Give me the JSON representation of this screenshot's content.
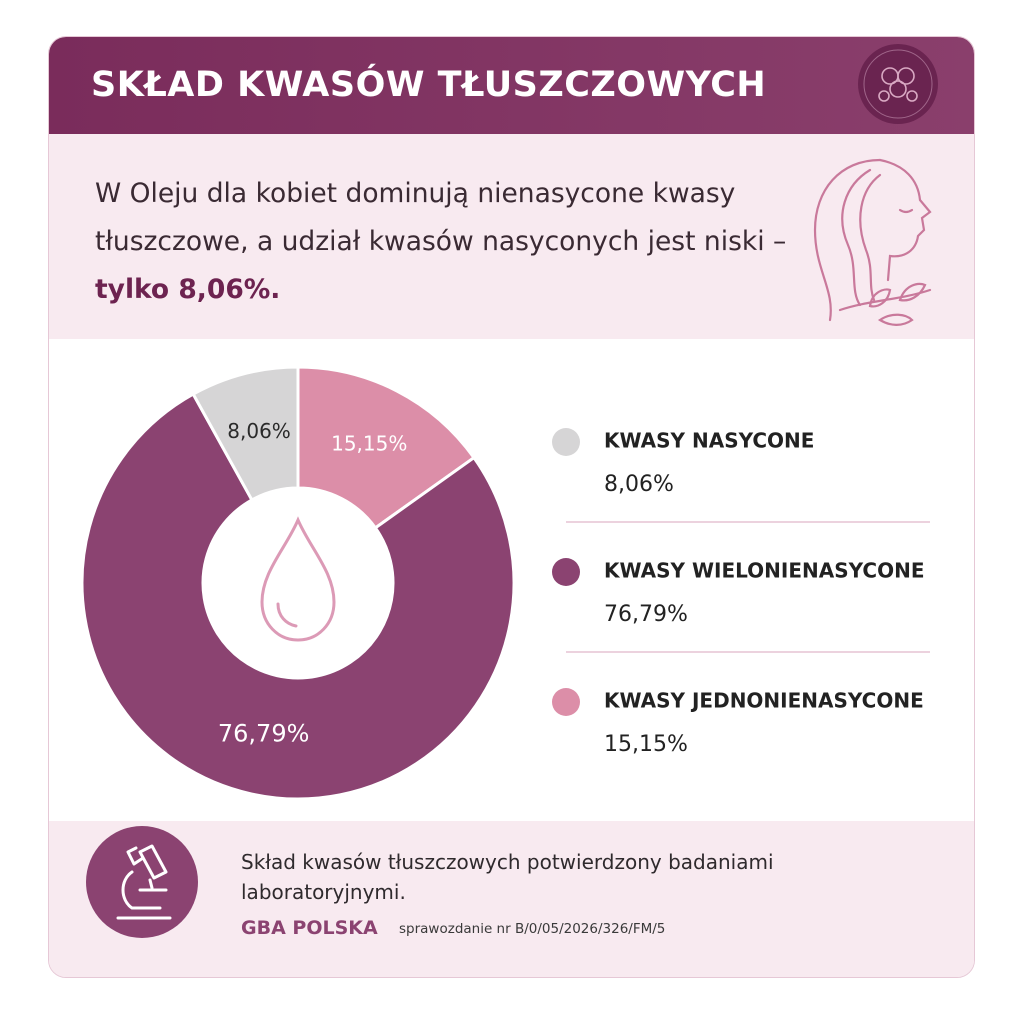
{
  "header": {
    "title": "SKŁAD KWASÓW TŁUSZCZOWYCH"
  },
  "intro": {
    "text": "W Oleju dla kobiet dominują nienasycone kwasy tłuszczowe, a udział kwasów nasyconych jest niski –",
    "highlight": "tylko 8,06%."
  },
  "chart_data": {
    "type": "pie",
    "donut": true,
    "categories": [
      "KWASY NASYCONE",
      "KWASY WIELONIENASYCONE",
      "KWASY JEDNONIENASYCONE"
    ],
    "values": [
      8.06,
      76.79,
      15.15
    ],
    "value_labels": [
      "8,06%",
      "76,79%",
      "15,15%"
    ],
    "colors": [
      "#d6d5d6",
      "#8b4371",
      "#dc8ea8"
    ],
    "label_colors": [
      "#2a2a2a",
      "#ffffff",
      "#ffffff"
    ]
  },
  "footer": {
    "text": "Skład kwasów tłuszczowych potwierdzony badaniami laboratoryjnymi.",
    "source": "GBA POLSKA",
    "report": "sprawozdanie nr B/0/05/2026/326/FM/5"
  }
}
